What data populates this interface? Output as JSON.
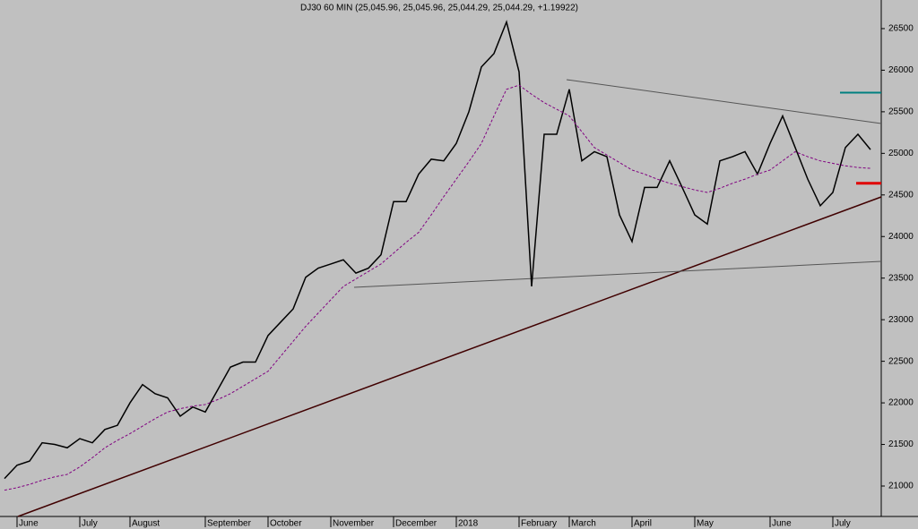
{
  "chart_data": {
    "type": "line",
    "title": "DJ30 60 MIN (25,045.96, 25,045.96, 25,044.29, 25,044.29, +1.19922)",
    "categories": [
      null,
      "June",
      null,
      null,
      null,
      null,
      "July",
      null,
      null,
      null,
      "August",
      null,
      null,
      null,
      null,
      null,
      "September",
      null,
      null,
      null,
      null,
      "October",
      null,
      null,
      null,
      null,
      "November",
      null,
      null,
      null,
      null,
      "December",
      null,
      null,
      null,
      null,
      "2018",
      null,
      null,
      null,
      null,
      "February",
      null,
      null,
      null,
      "March",
      null,
      null,
      null,
      null,
      "April",
      null,
      null,
      null,
      null,
      "May",
      null,
      null,
      null,
      null,
      null,
      "June",
      null,
      null,
      null,
      null,
      "July",
      null,
      null,
      null
    ],
    "series": [
      {
        "color": "#000000",
        "style": "solid",
        "values": [
          21090,
          21250,
          21300,
          21520,
          21500,
          21460,
          21570,
          21520,
          21680,
          21730,
          22000,
          22220,
          22110,
          22060,
          21840,
          21950,
          21890,
          22160,
          22430,
          22490,
          22490,
          22810,
          22970,
          23130,
          23510,
          23620,
          23670,
          23720,
          23560,
          23620,
          23780,
          24420,
          24420,
          24750,
          24930,
          24910,
          25120,
          25500,
          26040,
          26200,
          26580,
          25980,
          23400,
          25230,
          25230,
          25770,
          24910,
          25020,
          24960,
          24260,
          23940,
          24590,
          24590,
          24910,
          24590,
          24260,
          24150,
          24910,
          24960,
          25020,
          24750,
          25120,
          25450,
          25070,
          24690,
          24370,
          24530,
          25070,
          25230,
          25045
        ]
      },
      {
        "color": "#800080",
        "style": "dashed",
        "values": [
          20950,
          20980,
          21020,
          21070,
          21110,
          21140,
          21230,
          21340,
          21460,
          21550,
          21630,
          21720,
          21810,
          21890,
          21930,
          21960,
          21980,
          22040,
          22110,
          22200,
          22290,
          22380,
          22560,
          22740,
          22920,
          23080,
          23240,
          23400,
          23490,
          23580,
          23670,
          23800,
          23930,
          24050,
          24260,
          24480,
          24690,
          24900,
          25120,
          25450,
          25770,
          25820,
          25710,
          25610,
          25530,
          25450,
          25260,
          25070,
          24980,
          24890,
          24800,
          24750,
          24690,
          24640,
          24600,
          24560,
          24530,
          24580,
          24640,
          24690,
          24750,
          24800,
          24910,
          25020,
          24960,
          24910,
          24880,
          24850,
          24830,
          24820
        ]
      }
    ],
    "levels": [
      {
        "value": 25730,
        "color": "#008080"
      },
      {
        "value": 24640,
        "color": "#e00000"
      }
    ],
    "ylim": [
      20634,
      26844
    ],
    "yticks": [
      21000,
      21500,
      22000,
      22500,
      23000,
      23500,
      24000,
      24500,
      25000,
      25500,
      26000,
      26500
    ]
  }
}
